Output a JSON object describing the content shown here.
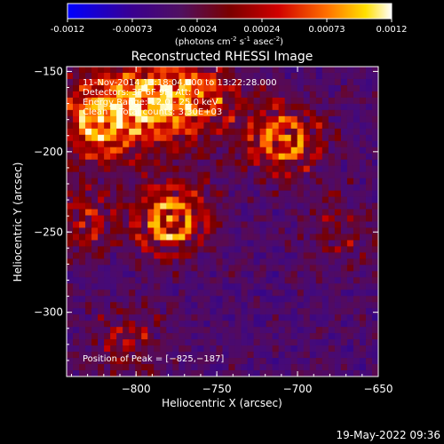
{
  "chart_data": {
    "type": "heatmap",
    "title": "Reconstructed RHESSI Image",
    "xlabel": "Heliocentric X (arcsec)",
    "ylabel": "Heliocentric Y (arcsec)",
    "xlim": [
      -843,
      -650
    ],
    "ylim": [
      -340,
      -147
    ],
    "x_ticks": [
      -800,
      -750,
      -700,
      -650
    ],
    "y_ticks": [
      -150,
      -200,
      -250,
      -300
    ],
    "colorbar": {
      "min": -0.0012,
      "max": 0.0012,
      "ticks": [
        "-0.0012",
        "-0.00073",
        "-0.00024",
        "0.00024",
        "0.00073",
        "0.0012"
      ],
      "unit_prefix": "(photons cm",
      "unit_exp1": "-2",
      "unit_mid": " s",
      "unit_exp2": "-1",
      "unit_mid2": " asec",
      "unit_exp3": "-2",
      "unit_suffix": ")"
    },
    "annotations": {
      "time_range": "11-Nov-2014 13:18:04.000 to 13:22:28.000",
      "detectors": "Detectors: 3F 6F 9F, Att: 0",
      "energy": "Energy Range: 12.0 - 25.0 keV",
      "algorithm": "Clean    Total counts: 3.30E+03",
      "peak": "Position of Peak = [-825,-187]"
    },
    "sources": [
      {
        "x": -778,
        "y": -243,
        "amp": 1.0
      },
      {
        "x": -708,
        "y": -192,
        "amp": 0.85
      },
      {
        "x": -822,
        "y": -180,
        "amp": 0.85
      },
      {
        "x": -790,
        "y": -168,
        "amp": 0.75
      },
      {
        "x": -760,
        "y": -165,
        "amp": 0.6
      },
      {
        "x": -835,
        "y": -245,
        "amp": 0.55
      },
      {
        "x": -805,
        "y": -320,
        "amp": 0.45
      },
      {
        "x": -675,
        "y": -250,
        "amp": 0.35
      }
    ]
  },
  "footer": {
    "date": "19-May-2022 09:36"
  }
}
